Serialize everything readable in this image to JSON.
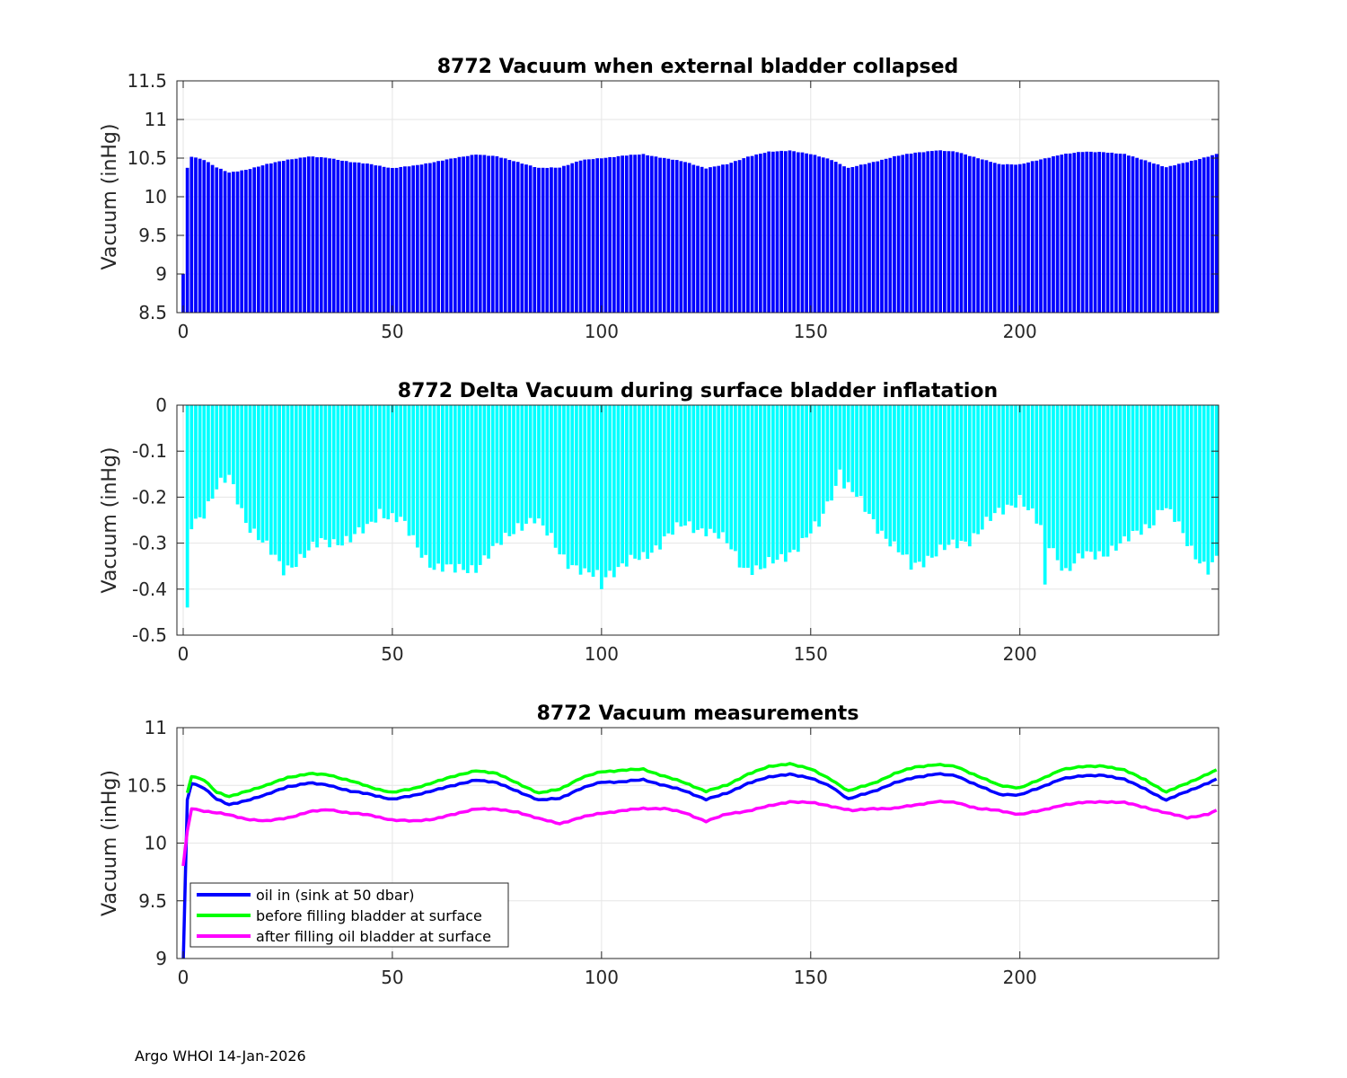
{
  "footer": "Argo WHOI 14-Jan-2026",
  "colors": {
    "bar1": "#0000ff",
    "bar2": "#00ffff",
    "oil_in": "#0000ff",
    "before": "#00ff00",
    "after": "#ff00ff",
    "grid": "#e6e6e6",
    "axis": "#262626"
  },
  "chart_data": [
    {
      "type": "bar",
      "title": "8772 Vacuum when external bladder collapsed",
      "xlabel": "",
      "ylabel": "Vacuum (inHg)",
      "xlim": [
        -1.5,
        247.5
      ],
      "ylim": [
        8.5,
        11.5
      ],
      "xticks": [
        0,
        50,
        100,
        150,
        200
      ],
      "yticks": [
        "8.5",
        "9",
        "9.5",
        "10",
        "10.5",
        "11",
        "11.5"
      ],
      "x_range": [
        0,
        247
      ],
      "anchors": [
        [
          0,
          9.0
        ],
        [
          1,
          10.37
        ],
        [
          2,
          10.52
        ],
        [
          5,
          10.48
        ],
        [
          8,
          10.38
        ],
        [
          11,
          10.31
        ],
        [
          15,
          10.35
        ],
        [
          20,
          10.42
        ],
        [
          25,
          10.48
        ],
        [
          30,
          10.52
        ],
        [
          35,
          10.5
        ],
        [
          40,
          10.45
        ],
        [
          45,
          10.42
        ],
        [
          50,
          10.37
        ],
        [
          55,
          10.4
        ],
        [
          60,
          10.45
        ],
        [
          65,
          10.5
        ],
        [
          70,
          10.55
        ],
        [
          75,
          10.52
        ],
        [
          80,
          10.45
        ],
        [
          85,
          10.37
        ],
        [
          90,
          10.38
        ],
        [
          95,
          10.47
        ],
        [
          100,
          10.5
        ],
        [
          105,
          10.53
        ],
        [
          110,
          10.55
        ],
        [
          115,
          10.5
        ],
        [
          120,
          10.45
        ],
        [
          125,
          10.37
        ],
        [
          130,
          10.42
        ],
        [
          135,
          10.52
        ],
        [
          140,
          10.58
        ],
        [
          145,
          10.6
        ],
        [
          150,
          10.55
        ],
        [
          155,
          10.48
        ],
        [
          159,
          10.37
        ],
        [
          165,
          10.45
        ],
        [
          170,
          10.52
        ],
        [
          175,
          10.57
        ],
        [
          180,
          10.6
        ],
        [
          185,
          10.58
        ],
        [
          190,
          10.5
        ],
        [
          195,
          10.42
        ],
        [
          200,
          10.42
        ],
        [
          205,
          10.48
        ],
        [
          210,
          10.55
        ],
        [
          215,
          10.58
        ],
        [
          220,
          10.58
        ],
        [
          225,
          10.55
        ],
        [
          230,
          10.47
        ],
        [
          235,
          10.38
        ],
        [
          240,
          10.45
        ],
        [
          245,
          10.52
        ],
        [
          247,
          10.55
        ]
      ]
    },
    {
      "type": "bar",
      "title": "8772 Delta Vacuum during surface bladder inflatation",
      "xlabel": "",
      "ylabel": "Vacuum (inHg)",
      "xlim": [
        -1.5,
        247.5
      ],
      "ylim": [
        -0.5,
        0
      ],
      "xticks": [
        0,
        50,
        100,
        150,
        200
      ],
      "yticks": [
        "-0.5",
        "-0.4",
        "-0.3",
        "-0.2",
        "-0.1",
        "0"
      ],
      "x_range": [
        1,
        247
      ],
      "anchors": [
        [
          1,
          -0.44
        ],
        [
          2,
          -0.26
        ],
        [
          5,
          -0.23
        ],
        [
          8,
          -0.18
        ],
        [
          11,
          -0.16
        ],
        [
          15,
          -0.25
        ],
        [
          20,
          -0.31
        ],
        [
          24,
          -0.36
        ],
        [
          28,
          -0.33
        ],
        [
          33,
          -0.3
        ],
        [
          40,
          -0.29
        ],
        [
          44,
          -0.27
        ],
        [
          47,
          -0.23
        ],
        [
          52,
          -0.25
        ],
        [
          56,
          -0.31
        ],
        [
          60,
          -0.35
        ],
        [
          65,
          -0.36
        ],
        [
          70,
          -0.35
        ],
        [
          75,
          -0.31
        ],
        [
          80,
          -0.26
        ],
        [
          84,
          -0.25
        ],
        [
          88,
          -0.29
        ],
        [
          92,
          -0.34
        ],
        [
          96,
          -0.37
        ],
        [
          100,
          -0.37
        ],
        [
          105,
          -0.35
        ],
        [
          110,
          -0.33
        ],
        [
          115,
          -0.29
        ],
        [
          120,
          -0.26
        ],
        [
          125,
          -0.27
        ],
        [
          130,
          -0.3
        ],
        [
          134,
          -0.35
        ],
        [
          138,
          -0.36
        ],
        [
          143,
          -0.33
        ],
        [
          148,
          -0.3
        ],
        [
          152,
          -0.26
        ],
        [
          155,
          -0.19
        ],
        [
          157,
          -0.16
        ],
        [
          160,
          -0.19
        ],
        [
          165,
          -0.25
        ],
        [
          170,
          -0.31
        ],
        [
          174,
          -0.35
        ],
        [
          178,
          -0.33
        ],
        [
          183,
          -0.31
        ],
        [
          188,
          -0.29
        ],
        [
          193,
          -0.25
        ],
        [
          197,
          -0.22
        ],
        [
          200,
          -0.2
        ],
        [
          203,
          -0.24
        ],
        [
          207,
          -0.3
        ],
        [
          211,
          -0.36
        ],
        [
          215,
          -0.33
        ],
        [
          220,
          -0.32
        ],
        [
          225,
          -0.3
        ],
        [
          229,
          -0.27
        ],
        [
          232,
          -0.25
        ],
        [
          234,
          -0.22
        ],
        [
          237,
          -0.25
        ],
        [
          241,
          -0.31
        ],
        [
          245,
          -0.36
        ],
        [
          247,
          -0.34
        ]
      ],
      "spikes": [
        [
          1,
          -0.44
        ],
        [
          100,
          -0.4
        ],
        [
          157,
          -0.14
        ],
        [
          206,
          -0.39
        ],
        [
          24,
          -0.37
        ]
      ]
    },
    {
      "type": "line",
      "title": "8772 Vacuum measurements",
      "xlabel": "",
      "ylabel": "Vacuum (inHg)",
      "xlim": [
        -1.5,
        247.5
      ],
      "ylim": [
        9,
        11
      ],
      "xticks": [
        0,
        50,
        100,
        150,
        200
      ],
      "yticks": [
        "9",
        "9.5",
        "10",
        "10.5",
        "11"
      ],
      "legend_position": "bottom-left",
      "series": [
        {
          "name": "oil in (sink at 50 dbar)",
          "color": "#0000ff",
          "x_range": [
            0,
            247
          ],
          "anchors": [
            [
              0,
              8.95
            ],
            [
              1,
              10.37
            ],
            [
              2,
              10.52
            ],
            [
              5,
              10.48
            ],
            [
              8,
              10.38
            ],
            [
              11,
              10.33
            ],
            [
              15,
              10.37
            ],
            [
              20,
              10.42
            ],
            [
              25,
              10.49
            ],
            [
              30,
              10.52
            ],
            [
              35,
              10.5
            ],
            [
              40,
              10.45
            ],
            [
              45,
              10.42
            ],
            [
              50,
              10.38
            ],
            [
              55,
              10.41
            ],
            [
              60,
              10.46
            ],
            [
              65,
              10.5
            ],
            [
              70,
              10.55
            ],
            [
              75,
              10.52
            ],
            [
              80,
              10.45
            ],
            [
              85,
              10.37
            ],
            [
              90,
              10.39
            ],
            [
              95,
              10.47
            ],
            [
              100,
              10.53
            ],
            [
              105,
              10.53
            ],
            [
              110,
              10.55
            ],
            [
              115,
              10.5
            ],
            [
              120,
              10.45
            ],
            [
              125,
              10.38
            ],
            [
              130,
              10.43
            ],
            [
              135,
              10.52
            ],
            [
              140,
              10.57
            ],
            [
              145,
              10.6
            ],
            [
              150,
              10.56
            ],
            [
              155,
              10.49
            ],
            [
              159,
              10.38
            ],
            [
              165,
              10.45
            ],
            [
              170,
              10.52
            ],
            [
              175,
              10.57
            ],
            [
              180,
              10.6
            ],
            [
              185,
              10.58
            ],
            [
              190,
              10.5
            ],
            [
              195,
              10.42
            ],
            [
              200,
              10.42
            ],
            [
              205,
              10.48
            ],
            [
              210,
              10.56
            ],
            [
              215,
              10.58
            ],
            [
              220,
              10.59
            ],
            [
              225,
              10.55
            ],
            [
              230,
              10.47
            ],
            [
              235,
              10.37
            ],
            [
              240,
              10.45
            ],
            [
              245,
              10.52
            ],
            [
              247,
              10.55
            ]
          ]
        },
        {
          "name": "before filling bladder at surface",
          "color": "#00ff00",
          "x_range": [
            1,
            247
          ],
          "anchors": [
            [
              1,
              10.43
            ],
            [
              2,
              10.58
            ],
            [
              5,
              10.55
            ],
            [
              8,
              10.44
            ],
            [
              11,
              10.4
            ],
            [
              15,
              10.45
            ],
            [
              20,
              10.5
            ],
            [
              25,
              10.57
            ],
            [
              30,
              10.6
            ],
            [
              35,
              10.59
            ],
            [
              40,
              10.54
            ],
            [
              45,
              10.48
            ],
            [
              50,
              10.44
            ],
            [
              55,
              10.47
            ],
            [
              60,
              10.53
            ],
            [
              65,
              10.58
            ],
            [
              70,
              10.63
            ],
            [
              75,
              10.6
            ],
            [
              80,
              10.52
            ],
            [
              85,
              10.43
            ],
            [
              90,
              10.47
            ],
            [
              95,
              10.56
            ],
            [
              100,
              10.62
            ],
            [
              105,
              10.63
            ],
            [
              110,
              10.64
            ],
            [
              115,
              10.58
            ],
            [
              120,
              10.52
            ],
            [
              125,
              10.45
            ],
            [
              130,
              10.5
            ],
            [
              135,
              10.6
            ],
            [
              140,
              10.66
            ],
            [
              145,
              10.69
            ],
            [
              150,
              10.64
            ],
            [
              155,
              10.55
            ],
            [
              159,
              10.45
            ],
            [
              165,
              10.52
            ],
            [
              170,
              10.6
            ],
            [
              175,
              10.66
            ],
            [
              180,
              10.68
            ],
            [
              185,
              10.66
            ],
            [
              190,
              10.58
            ],
            [
              195,
              10.5
            ],
            [
              200,
              10.48
            ],
            [
              205,
              10.55
            ],
            [
              210,
              10.64
            ],
            [
              215,
              10.66
            ],
            [
              220,
              10.67
            ],
            [
              225,
              10.63
            ],
            [
              230,
              10.55
            ],
            [
              235,
              10.44
            ],
            [
              240,
              10.52
            ],
            [
              245,
              10.6
            ],
            [
              247,
              10.63
            ]
          ]
        },
        {
          "name": "after filling oil bladder at surface",
          "color": "#ff00ff",
          "x_range": [
            0,
            247
          ],
          "anchors": [
            [
              0,
              9.8
            ],
            [
              1,
              10.1
            ],
            [
              2,
              10.3
            ],
            [
              5,
              10.28
            ],
            [
              10,
              10.25
            ],
            [
              15,
              10.21
            ],
            [
              20,
              10.19
            ],
            [
              25,
              10.22
            ],
            [
              30,
              10.27
            ],
            [
              35,
              10.29
            ],
            [
              40,
              10.26
            ],
            [
              45,
              10.24
            ],
            [
              50,
              10.2
            ],
            [
              55,
              10.19
            ],
            [
              60,
              10.21
            ],
            [
              65,
              10.25
            ],
            [
              70,
              10.3
            ],
            [
              75,
              10.29
            ],
            [
              80,
              10.27
            ],
            [
              85,
              10.21
            ],
            [
              90,
              10.17
            ],
            [
              95,
              10.22
            ],
            [
              100,
              10.26
            ],
            [
              105,
              10.28
            ],
            [
              110,
              10.3
            ],
            [
              115,
              10.3
            ],
            [
              120,
              10.26
            ],
            [
              125,
              10.19
            ],
            [
              130,
              10.25
            ],
            [
              135,
              10.28
            ],
            [
              140,
              10.32
            ],
            [
              145,
              10.36
            ],
            [
              150,
              10.35
            ],
            [
              155,
              10.32
            ],
            [
              160,
              10.28
            ],
            [
              165,
              10.3
            ],
            [
              170,
              10.3
            ],
            [
              175,
              10.33
            ],
            [
              180,
              10.36
            ],
            [
              185,
              10.35
            ],
            [
              190,
              10.3
            ],
            [
              195,
              10.28
            ],
            [
              200,
              10.25
            ],
            [
              205,
              10.28
            ],
            [
              210,
              10.33
            ],
            [
              215,
              10.35
            ],
            [
              220,
              10.36
            ],
            [
              225,
              10.35
            ],
            [
              230,
              10.31
            ],
            [
              235,
              10.26
            ],
            [
              240,
              10.22
            ],
            [
              245,
              10.25
            ],
            [
              247,
              10.28
            ]
          ]
        }
      ]
    }
  ]
}
